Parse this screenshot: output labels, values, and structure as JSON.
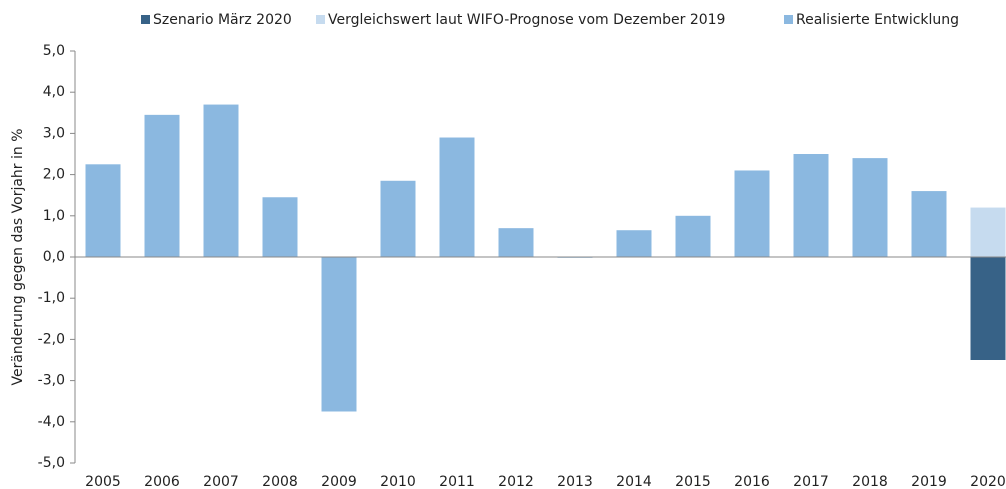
{
  "chart_data": {
    "type": "bar",
    "y_label": "Veränderung gegen das Vorjahr in %",
    "categories": [
      "2005",
      "2006",
      "2007",
      "2008",
      "2009",
      "2010",
      "2011",
      "2012",
      "2013",
      "2014",
      "2015",
      "2016",
      "2017",
      "2018",
      "2019",
      "2020"
    ],
    "series": [
      {
        "name": "Szenario März 2020",
        "color": "#376287",
        "values": [
          null,
          null,
          null,
          null,
          null,
          null,
          null,
          null,
          null,
          null,
          null,
          null,
          null,
          null,
          null,
          -2.5
        ]
      },
      {
        "name": "Vergleichswert laut WIFO-Prognose vom Dezember 2019",
        "color": "#c6dbef",
        "values": [
          null,
          null,
          null,
          null,
          null,
          null,
          null,
          null,
          null,
          null,
          null,
          null,
          null,
          null,
          null,
          1.2
        ]
      },
      {
        "name": "Realisierte Entwicklung",
        "color": "#8bb8e0",
        "values": [
          2.25,
          3.45,
          3.7,
          1.45,
          -3.75,
          1.85,
          2.9,
          0.7,
          0.0,
          0.65,
          1.0,
          2.1,
          2.5,
          2.4,
          1.6,
          null
        ]
      }
    ],
    "ylim": [
      -5,
      5
    ],
    "yticks": [
      {
        "value": 5,
        "label": "5,0"
      },
      {
        "value": 4,
        "label": "4,0"
      },
      {
        "value": 3,
        "label": "3,0"
      },
      {
        "value": 2,
        "label": "2,0"
      },
      {
        "value": 1,
        "label": "1,0"
      },
      {
        "value": 0,
        "label": "0,0"
      },
      {
        "value": -1,
        "label": "-1,0"
      },
      {
        "value": -2,
        "label": "-2,0"
      },
      {
        "value": -3,
        "label": "-3,0"
      },
      {
        "value": -4,
        "label": "-4,0"
      },
      {
        "value": -5,
        "label": "-5,0"
      }
    ],
    "legend": "top",
    "grid": false
  }
}
